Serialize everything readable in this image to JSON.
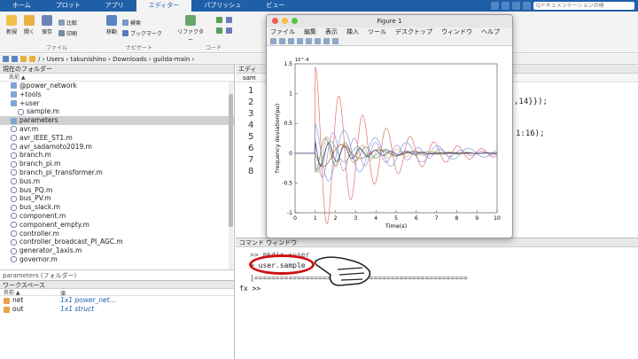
{
  "tabs": [
    {
      "label": "ホーム"
    },
    {
      "label": "プロット"
    },
    {
      "label": "アプリ"
    },
    {
      "label": "エディター",
      "active": true
    },
    {
      "label": "パブリッシュ"
    },
    {
      "label": "ビュー"
    }
  ],
  "search_placeholder": "Qドキュメンテーションの検",
  "ribbon": {
    "new": "新規",
    "open": "開く",
    "save": "保存",
    "compare": "比較",
    "print": "印刷",
    "move": "移動",
    "find": "検索",
    "bookmark": "ブックマーク",
    "refactor": "リファクター",
    "group_file": "ファイル",
    "group_nav": "ナビゲート",
    "group_code": "コード"
  },
  "path": "/ › Users › takunishino › Downloads › guilda-main ›",
  "left_panel": {
    "title": "現在のフォルダー",
    "col_name": "名前 ▲",
    "files": [
      {
        "name": "@power_network",
        "type": "folder",
        "indent": 0
      },
      {
        "name": "+tools",
        "type": "folder",
        "indent": 0
      },
      {
        "name": "+user",
        "type": "folder",
        "indent": 0
      },
      {
        "name": "sample.m",
        "type": "mfile",
        "indent": 1
      },
      {
        "name": "parameters",
        "type": "folder",
        "indent": 0,
        "selected": true
      },
      {
        "name": "avr.m",
        "type": "mfile",
        "indent": 0
      },
      {
        "name": "avr_IEEE_ST1.m",
        "type": "mfile",
        "indent": 0
      },
      {
        "name": "avr_sadamoto2019.m",
        "type": "mfile",
        "indent": 0
      },
      {
        "name": "branch.m",
        "type": "mfile",
        "indent": 0
      },
      {
        "name": "branch_pi.m",
        "type": "mfile",
        "indent": 0
      },
      {
        "name": "branch_pi_transformer.m",
        "type": "mfile",
        "indent": 0
      },
      {
        "name": "bus.m",
        "type": "mfile",
        "indent": 0
      },
      {
        "name": "bus_PQ.m",
        "type": "mfile",
        "indent": 0
      },
      {
        "name": "bus_PV.m",
        "type": "mfile",
        "indent": 0
      },
      {
        "name": "bus_slack.m",
        "type": "mfile",
        "indent": 0
      },
      {
        "name": "component.m",
        "type": "mfile",
        "indent": 0
      },
      {
        "name": "component_empty.m",
        "type": "mfile",
        "indent": 0
      },
      {
        "name": "controller.m",
        "type": "mfile",
        "indent": 0
      },
      {
        "name": "controller_broadcast_PI_AGC.m",
        "type": "mfile",
        "indent": 0
      },
      {
        "name": "generator_1axis.m",
        "type": "mfile",
        "indent": 0
      },
      {
        "name": "governor.m",
        "type": "mfile",
        "indent": 0
      }
    ],
    "detail": "parameters (フォルダー)"
  },
  "workspace": {
    "title": "ワークスペース",
    "col_name": "名前 ▲",
    "col_value": "値",
    "rows": [
      {
        "name": "net",
        "value": "1x1 power_net..."
      },
      {
        "name": "out",
        "value": "1x1 struct"
      }
    ]
  },
  "editor": {
    "title": "エディ",
    "tab": "sam",
    "line_numbers": [
      "1",
      "2",
      "3",
      "4",
      "5",
      "6",
      "7",
      "8"
    ],
    "fragment1": ",14}});",
    "fragment2": "1:16);"
  },
  "command": {
    "title": "コマンド ウィンドウ",
    "line1": ">> mkdir +user",
    "line2": "> user.sample",
    "line3": "|==================================================",
    "line4": "fx >>"
  },
  "figure": {
    "title": "Figure 1",
    "menu": [
      "ファイル",
      "編集",
      "表示",
      "挿入",
      "ツール",
      "デスクトップ",
      "ウィンドウ",
      "ヘルプ"
    ]
  },
  "chart_data": {
    "type": "line",
    "title": "",
    "xlabel": "Time(s)",
    "ylabel": "frequency deviation(pu)",
    "y_multiplier": "10^-4",
    "xlim": [
      0,
      10
    ],
    "ylim": [
      -1,
      1.5
    ],
    "xticks": [
      0,
      1,
      2,
      3,
      4,
      5,
      6,
      7,
      8,
      9,
      10
    ],
    "yticks": [
      -1,
      -0.5,
      0,
      0.5,
      1,
      1.5
    ],
    "series": [
      {
        "color": "#e07070",
        "amp": 1.45,
        "decay": 0.35,
        "freq": 1.7,
        "phase": 0
      },
      {
        "color": "#7aa0e0",
        "amp": 0.55,
        "decay": 0.25,
        "freq": 1.3,
        "phase": 0.4
      },
      {
        "color": "#b088d8",
        "amp": 0.45,
        "decay": 0.3,
        "freq": 1.9,
        "phase": 1.0
      },
      {
        "color": "#d8b060",
        "amp": 0.35,
        "decay": 0.4,
        "freq": 2.3,
        "phase": 2.0
      },
      {
        "color": "#60b0a0",
        "amp": 0.3,
        "decay": 0.5,
        "freq": 1.5,
        "phase": 2.6
      },
      {
        "color": "#888888",
        "amp": 0.32,
        "decay": 0.45,
        "freq": 2.0,
        "phase": 3.1
      },
      {
        "color": "#a06040",
        "amp": 0.28,
        "decay": 0.5,
        "freq": 1.1,
        "phase": 1.6
      },
      {
        "color": "#404080",
        "amp": 0.25,
        "decay": 0.55,
        "freq": 2.6,
        "phase": 0.8
      }
    ]
  }
}
